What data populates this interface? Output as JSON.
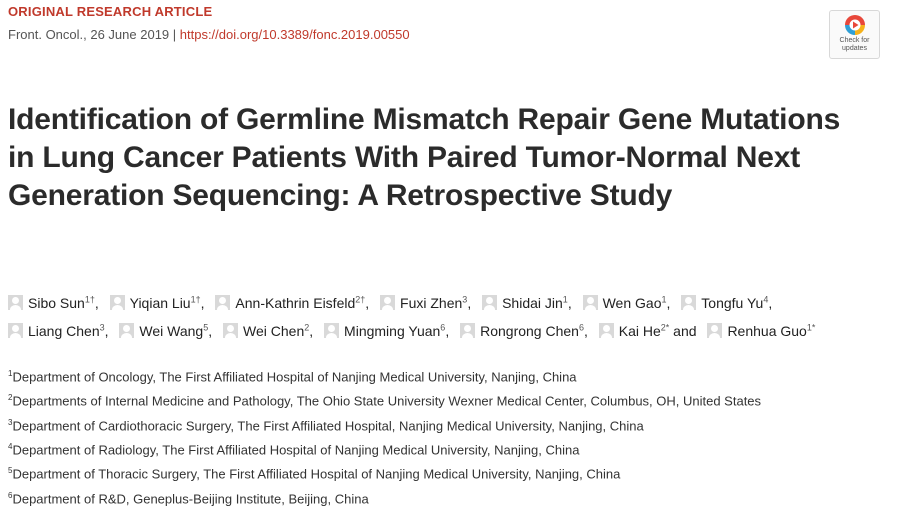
{
  "header": {
    "article_type": "ORIGINAL RESEARCH ARTICLE",
    "journal_date": "Front. Oncol., 26 June 2019",
    "separator": " | ",
    "doi": "https://doi.org/10.3389/fonc.2019.00550"
  },
  "check_updates": {
    "line1": "Check for",
    "line2": "updates"
  },
  "title": "Identification of Germline Mismatch Repair Gene Mutations in Lung Cancer Patients With Paired Tumor-Normal Next Generation Sequencing: A Retrospective Study",
  "authors": [
    {
      "name": "Sibo Sun",
      "sup": "1†",
      "sep": ","
    },
    {
      "name": "Yiqian Liu",
      "sup": "1†",
      "sep": ","
    },
    {
      "name": "Ann-Kathrin Eisfeld",
      "sup": "2†",
      "sep": ","
    },
    {
      "name": "Fuxi Zhen",
      "sup": "3",
      "sep": ","
    },
    {
      "name": "Shidai Jin",
      "sup": "1",
      "sep": ","
    },
    {
      "name": "Wen Gao",
      "sup": "1",
      "sep": ","
    },
    {
      "name": "Tongfu Yu",
      "sup": "4",
      "sep": ","
    },
    {
      "name": "Liang Chen",
      "sup": "3",
      "sep": ","
    },
    {
      "name": "Wei Wang",
      "sup": "5",
      "sep": ","
    },
    {
      "name": "Wei Chen",
      "sup": "2",
      "sep": ","
    },
    {
      "name": "Mingming Yuan",
      "sup": "6",
      "sep": ","
    },
    {
      "name": "Rongrong Chen",
      "sup": "6",
      "sep": ","
    },
    {
      "name": "Kai He",
      "sup": "2*",
      "sep": " and"
    },
    {
      "name": "Renhua Guo",
      "sup": "1*",
      "sep": ""
    }
  ],
  "affiliations": [
    {
      "num": "1",
      "text": "Department of Oncology, The First Affiliated Hospital of Nanjing Medical University, Nanjing, China"
    },
    {
      "num": "2",
      "text": "Departments of Internal Medicine and Pathology, The Ohio State University Wexner Medical Center, Columbus, OH, United States"
    },
    {
      "num": "3",
      "text": "Department of Cardiothoracic Surgery, The First Affiliated Hospital, Nanjing Medical University, Nanjing, China"
    },
    {
      "num": "4",
      "text": "Department of Radiology, The First Affiliated Hospital of Nanjing Medical University, Nanjing, China"
    },
    {
      "num": "5",
      "text": "Department of Thoracic Surgery, The First Affiliated Hospital of Nanjing Medical University, Nanjing, China"
    },
    {
      "num": "6",
      "text": "Department of R&D, Geneplus-Beijing Institute, Beijing, China"
    }
  ]
}
